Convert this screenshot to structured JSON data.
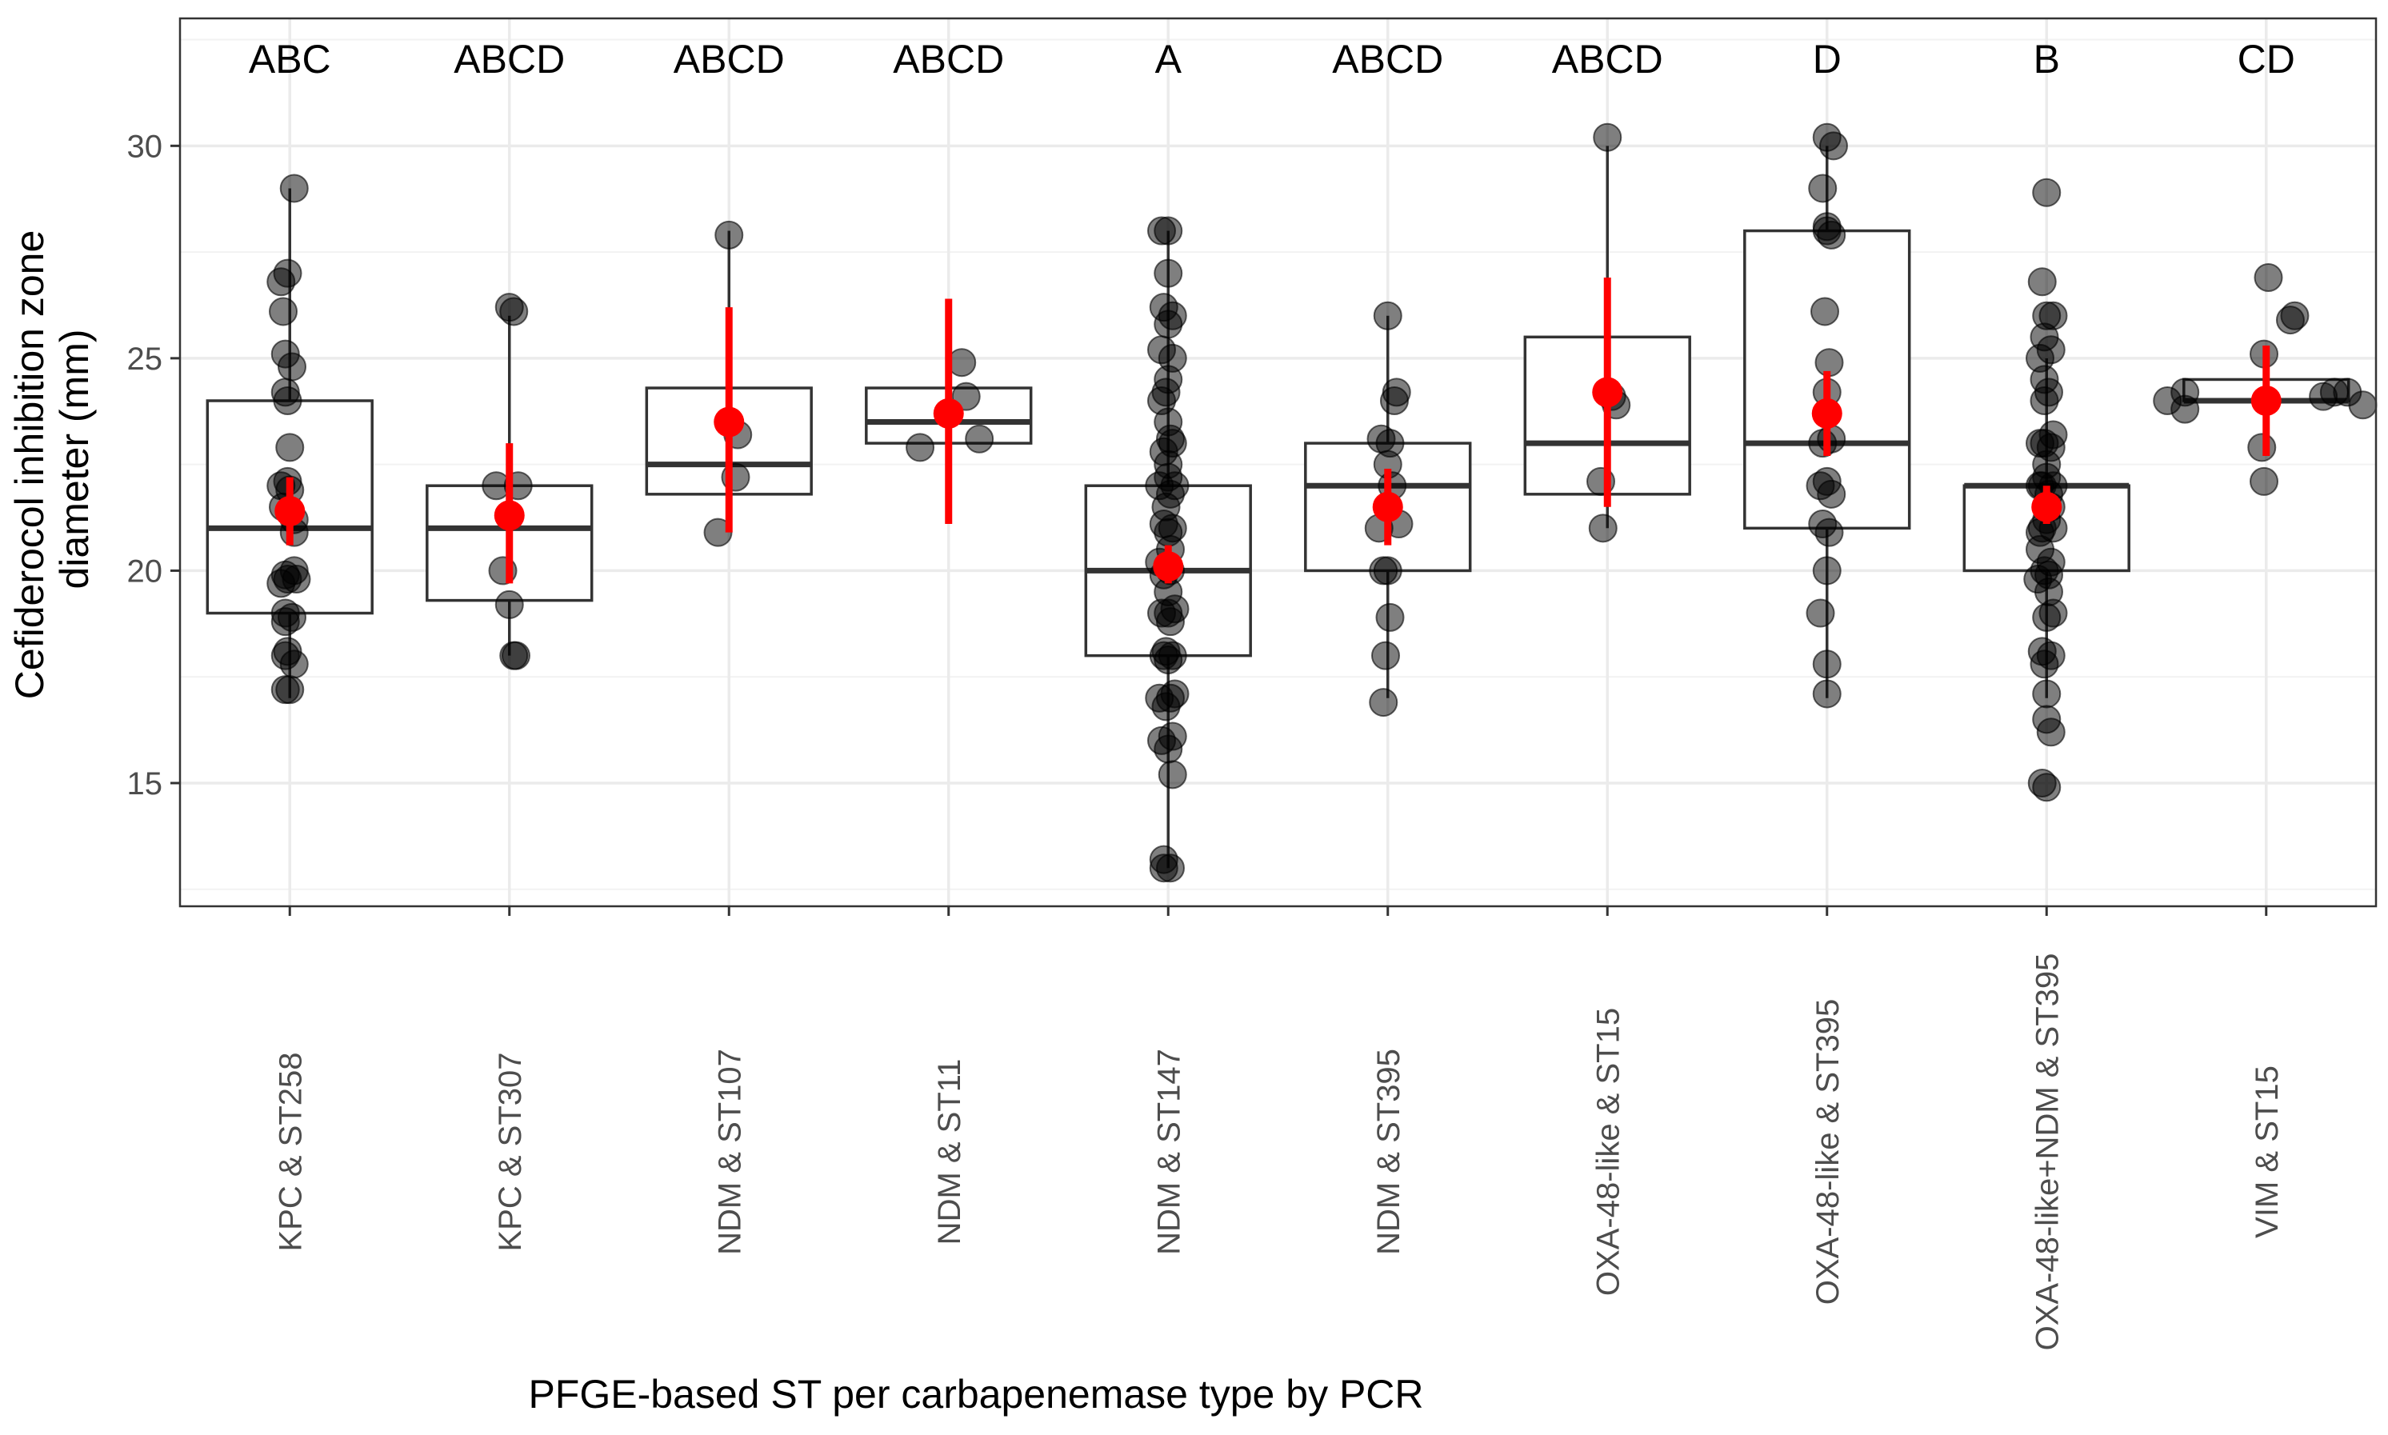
{
  "chart_data": {
    "type": "box",
    "title": "",
    "xlabel": "PFGE-based ST per carbapenemase type by PCR",
    "ylabel_lines": [
      "Cefiderocol inhibition zone",
      "diameter (mm)"
    ],
    "ylim": [
      12.1,
      33.0
    ],
    "yticks": [
      15,
      20,
      25,
      30
    ],
    "minor_yticks": [
      12.5,
      17.5,
      22.5,
      27.5,
      32.5
    ],
    "grid": true,
    "colors": {
      "points": "#000000",
      "box_line": "#333333",
      "mean": "#ff0000",
      "grid": "#ebebeb",
      "panel_border": "#333333"
    },
    "categories": [
      "KPC & ST258",
      "KPC & ST307",
      "NDM & ST107",
      "NDM & ST11",
      "NDM & ST147",
      "NDM & ST395",
      "OXA-48-like & ST15",
      "OXA-48-like & ST395",
      "OXA-48-like+NDM & ST395",
      "VIM & ST15"
    ],
    "group_letters": [
      "ABC",
      "ABCD",
      "ABCD",
      "ABCD",
      "A",
      "ABCD",
      "ABCD",
      "D",
      "B",
      "CD"
    ],
    "boxes": [
      {
        "q1": 19,
        "median": 21,
        "q3": 24,
        "whisker_low": 17,
        "whisker_high": 29
      },
      {
        "q1": 19.3,
        "median": 21,
        "q3": 22,
        "whisker_low": 18,
        "whisker_high": 26
      },
      {
        "q1": 21.8,
        "median": 22.5,
        "q3": 24.3,
        "whisker_low": 21,
        "whisker_high": 28
      },
      {
        "q1": 23,
        "median": 23.5,
        "q3": 24.3,
        "whisker_low": 23,
        "whisker_high": 25
      },
      {
        "q1": 18,
        "median": 20,
        "q3": 22,
        "whisker_low": 13,
        "whisker_high": 28
      },
      {
        "q1": 20,
        "median": 22,
        "q3": 23,
        "whisker_low": 17,
        "whisker_high": 26
      },
      {
        "q1": 21.8,
        "median": 23,
        "q3": 25.5,
        "whisker_low": 21,
        "whisker_high": 30
      },
      {
        "q1": 21,
        "median": 23,
        "q3": 28,
        "whisker_low": 17,
        "whisker_high": 30
      },
      {
        "q1": 20,
        "median": 22,
        "q3": 22,
        "whisker_low": 17,
        "whisker_high": 25
      },
      {
        "q1": 24,
        "median": 24,
        "q3": 24.5,
        "whisker_low": 24,
        "whisker_high": 24.5
      }
    ],
    "means": [
      {
        "mean": 21.4,
        "ci_low": 20.6,
        "ci_high": 22.2
      },
      {
        "mean": 21.3,
        "ci_low": 19.7,
        "ci_high": 23.0
      },
      {
        "mean": 23.5,
        "ci_low": 20.9,
        "ci_high": 26.2
      },
      {
        "mean": 23.7,
        "ci_low": 21.1,
        "ci_high": 26.4
      },
      {
        "mean": 20.1,
        "ci_low": 19.7,
        "ci_high": 20.6
      },
      {
        "mean": 21.5,
        "ci_low": 20.6,
        "ci_high": 22.4
      },
      {
        "mean": 24.2,
        "ci_low": 21.5,
        "ci_high": 26.9
      },
      {
        "mean": 23.7,
        "ci_low": 22.7,
        "ci_high": 24.7
      },
      {
        "mean": 21.5,
        "ci_low": 21.1,
        "ci_high": 22.0
      },
      {
        "mean": 24.0,
        "ci_low": 22.7,
        "ci_high": 25.3
      }
    ],
    "points": [
      {
        "x": [
          0.02,
          -0.01,
          -0.04,
          -0.03,
          -0.02,
          0.01,
          -0.02,
          -0.01,
          0.0,
          -0.01,
          -0.04,
          0.0,
          -0.03,
          0.02,
          0.02,
          0.02,
          0.03,
          -0.01,
          -0.02,
          -0.04,
          -0.02,
          0.01,
          -0.02,
          -0.01,
          -0.02,
          0.02,
          -0.02,
          0.0
        ],
        "y": [
          29.0,
          27.0,
          26.8,
          26.1,
          25.1,
          24.8,
          24.2,
          24.0,
          22.9,
          22.1,
          22.0,
          21.9,
          21.5,
          21.2,
          20.9,
          20.0,
          19.8,
          19.8,
          19.9,
          19.7,
          19.0,
          18.9,
          18.8,
          18.1,
          18.0,
          17.8,
          17.2,
          17.2
        ]
      },
      {
        "x": [
          0.0,
          0.02,
          -0.06,
          0.04,
          -0.03,
          0.0,
          0.02,
          0.03
        ],
        "y": [
          26.2,
          26.1,
          22.0,
          22.0,
          20.0,
          19.2,
          18.0,
          18.0
        ]
      },
      {
        "x": [
          0.0,
          0.04,
          0.03,
          -0.05
        ],
        "y": [
          27.9,
          23.2,
          22.2,
          20.9
        ]
      },
      {
        "x": [
          0.06,
          0.08,
          -0.13,
          0.14
        ],
        "y": [
          24.9,
          24.1,
          22.9,
          23.1
        ]
      },
      {
        "x": [
          0.0,
          -0.03,
          0.0,
          -0.02,
          0.02,
          0.0,
          -0.03,
          0.02,
          -0.01,
          -0.03,
          0.01,
          0.02,
          -0.02,
          0.0,
          -0.04,
          0.03,
          0.01,
          -0.02,
          0.02,
          0.0,
          -0.04,
          0.01,
          -0.02,
          0.03,
          0.0,
          -0.03,
          0.01,
          -0.01,
          0.02,
          -0.02,
          0.0,
          0.03,
          -0.04,
          0.01,
          -0.01,
          0.02,
          -0.03,
          0.0,
          0.02,
          -0.02,
          0.01,
          -0.02,
          0.0,
          0.01,
          -0.01,
          0.0,
          0.0,
          0.0
        ],
        "y": [
          28.0,
          28.0,
          27.0,
          26.2,
          26.0,
          25.8,
          25.2,
          25.0,
          24.2,
          24.0,
          23.1,
          23.0,
          22.8,
          22.2,
          22.0,
          22.0,
          21.8,
          21.1,
          21.0,
          20.9,
          20.2,
          20.0,
          19.9,
          19.1,
          19.0,
          19.0,
          18.8,
          18.1,
          18.0,
          18.0,
          17.9,
          17.1,
          17.0,
          17.0,
          16.8,
          16.1,
          16.0,
          15.8,
          15.2,
          13.2,
          13.0,
          13.0,
          19.5,
          20.5,
          21.5,
          22.5,
          23.5,
          24.5
        ]
      },
      {
        "x": [
          0.0,
          0.04,
          0.03,
          -0.03,
          0.01,
          0.02,
          -0.04,
          0.05,
          0.0,
          -0.02,
          0.01,
          -0.01,
          -0.02,
          0.0
        ],
        "y": [
          26.0,
          24.2,
          24.0,
          23.1,
          23.0,
          22.0,
          21.0,
          21.1,
          20.0,
          20.0,
          18.9,
          18.0,
          16.9,
          22.5
        ]
      },
      {
        "x": [
          0.0,
          0.02,
          0.04,
          -0.03,
          -0.02
        ],
        "y": [
          30.2,
          24.1,
          23.9,
          22.1,
          21.0
        ]
      },
      {
        "x": [
          0.0,
          0.03,
          -0.02,
          0.0,
          0.0,
          0.02,
          -0.01,
          0.01,
          0.0,
          -0.02,
          0.02,
          0.0,
          -0.03,
          0.02,
          -0.02,
          0.01,
          0.0,
          -0.03,
          0.0,
          0.0
        ],
        "y": [
          30.2,
          30.0,
          29.0,
          28.1,
          28.0,
          27.9,
          26.1,
          24.9,
          24.2,
          23.0,
          23.1,
          22.1,
          22.0,
          21.8,
          21.1,
          20.9,
          20.0,
          19.0,
          17.8,
          17.1
        ]
      },
      {
        "x": [
          0.0,
          -0.02,
          0.03,
          0.0,
          0.02,
          -0.03,
          0.01,
          -0.01,
          0.03,
          -0.03,
          0.02,
          0.0,
          -0.02,
          0.03,
          -0.03,
          0.01,
          0.0,
          -0.02,
          0.03,
          -0.03,
          0.02,
          -0.01,
          0.01,
          -0.04,
          0.03,
          0.0,
          -0.02,
          0.02,
          -0.01,
          0.0,
          0.02,
          -0.02,
          0.0,
          0.01,
          -0.03,
          0.02,
          0.0,
          -0.01,
          -0.01,
          -0.01,
          0.0
        ],
        "y": [
          28.9,
          26.8,
          26.0,
          26.0,
          25.2,
          25.0,
          24.2,
          24.0,
          23.2,
          23.0,
          22.9,
          22.2,
          22.0,
          22.0,
          22.0,
          21.8,
          21.2,
          21.0,
          21.0,
          20.9,
          20.2,
          20.0,
          19.9,
          19.8,
          19.0,
          18.9,
          18.1,
          18.0,
          17.8,
          17.1,
          16.2,
          15.0,
          14.9,
          19.5,
          20.5,
          21.5,
          22.5,
          23.0,
          24.5,
          25.5,
          16.5
        ]
      },
      {
        "x": [
          -0.45,
          -0.37,
          -0.37,
          0.01,
          -0.01,
          0.13,
          0.11,
          0.31,
          0.26,
          0.37,
          0.44,
          -0.02,
          -0.01
        ],
        "y": [
          24.0,
          24.2,
          23.8,
          26.9,
          25.1,
          26.0,
          25.9,
          24.2,
          24.1,
          24.2,
          23.9,
          22.9,
          22.1
        ]
      }
    ]
  }
}
